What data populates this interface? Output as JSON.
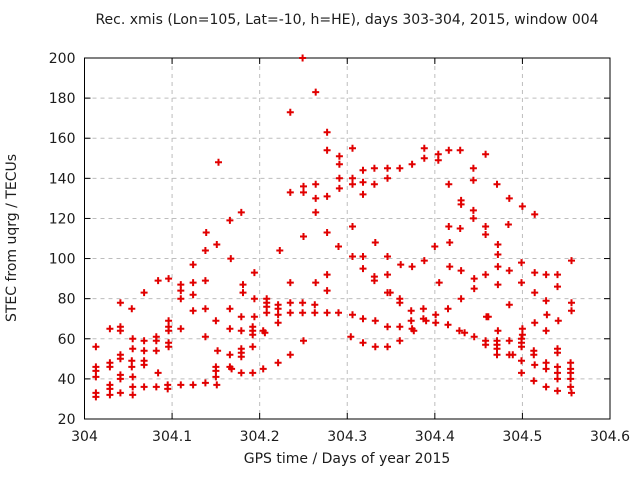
{
  "chart_data": {
    "type": "scatter",
    "title": "Rec. xmis (Lon=105, Lat=-10, h=HE), days 303-304, 2015, window 004",
    "xlabel": "GPS time / Days of year 2015",
    "ylabel": "STEC from uqrg / TECUs",
    "xlim": [
      304,
      304.6
    ],
    "ylim": [
      20,
      200
    ],
    "xticks": [
      304,
      304.1,
      304.2,
      304.3,
      304.4,
      304.5,
      304.6
    ],
    "xtick_labels": [
      "304",
      "304.1",
      "304.2",
      "304.3",
      "304.4",
      "304.5",
      "304.6"
    ],
    "yticks": [
      20,
      40,
      60,
      80,
      100,
      120,
      140,
      160,
      180,
      200
    ],
    "ytick_labels": [
      "20",
      "40",
      "60",
      "80",
      "100",
      "120",
      "140",
      "160",
      "180",
      "200"
    ],
    "grid": true,
    "legend": "none",
    "marker": {
      "shape": "plus",
      "color": "#e10000",
      "size": 7
    },
    "series": [
      {
        "name": "STEC",
        "points": [
          [
            304.139,
            113
          ],
          [
            304.153,
            148
          ],
          [
            304.166,
            119
          ],
          [
            304.179,
            123
          ],
          [
            304.249,
            200
          ],
          [
            304.264,
            183
          ],
          [
            304.235,
            173
          ],
          [
            304.277,
            163
          ],
          [
            304.277,
            154
          ],
          [
            304.291,
            151
          ],
          [
            304.291,
            147
          ],
          [
            304.306,
            155
          ],
          [
            304.388,
            155
          ],
          [
            304.388,
            150
          ],
          [
            304.318,
            144
          ],
          [
            304.331,
            145
          ],
          [
            304.346,
            145
          ],
          [
            304.36,
            145
          ],
          [
            304.374,
            147
          ],
          [
            304.346,
            140
          ],
          [
            304.306,
            140
          ],
          [
            304.291,
            140
          ],
          [
            304.291,
            135
          ],
          [
            304.264,
            137
          ],
          [
            304.25,
            136
          ],
          [
            304.235,
            133
          ],
          [
            304.25,
            133
          ],
          [
            304.306,
            137
          ],
          [
            304.318,
            138
          ],
          [
            304.331,
            137
          ],
          [
            304.318,
            132
          ],
          [
            304.264,
            130
          ],
          [
            304.277,
            131
          ],
          [
            304.264,
            123
          ],
          [
            304.306,
            116
          ],
          [
            304.277,
            113
          ],
          [
            304.25,
            111
          ],
          [
            304.332,
            108
          ],
          [
            304.416,
            154
          ],
          [
            304.429,
            154
          ],
          [
            304.404,
            152
          ],
          [
            304.404,
            149
          ],
          [
            304.458,
            152
          ],
          [
            304.444,
            145
          ],
          [
            304.444,
            139
          ],
          [
            304.416,
            137
          ],
          [
            304.471,
            137
          ],
          [
            304.485,
            130
          ],
          [
            304.43,
            129
          ],
          [
            304.43,
            127
          ],
          [
            304.5,
            126
          ],
          [
            304.444,
            124
          ],
          [
            304.514,
            122
          ],
          [
            304.444,
            120
          ],
          [
            304.484,
            117
          ],
          [
            304.416,
            116
          ],
          [
            304.429,
            115
          ],
          [
            304.458,
            116
          ],
          [
            304.458,
            112
          ],
          [
            304.417,
            108
          ],
          [
            304.138,
            104
          ],
          [
            304.124,
            97
          ],
          [
            304.084,
            89
          ],
          [
            304.096,
            90
          ],
          [
            304.11,
            87
          ],
          [
            304.124,
            88
          ],
          [
            304.138,
            89
          ],
          [
            304.068,
            83
          ],
          [
            304.11,
            84
          ],
          [
            304.124,
            82
          ],
          [
            304.041,
            78
          ],
          [
            304.11,
            80
          ],
          [
            304.054,
            75
          ],
          [
            304.124,
            74
          ],
          [
            304.138,
            75
          ],
          [
            304.096,
            69
          ],
          [
            304.096,
            66
          ],
          [
            304.029,
            65
          ],
          [
            304.041,
            66
          ],
          [
            304.041,
            64
          ],
          [
            304.096,
            64
          ],
          [
            304.11,
            65
          ],
          [
            304.138,
            61
          ],
          [
            304.013,
            56
          ],
          [
            304.055,
            60
          ],
          [
            304.068,
            59
          ],
          [
            304.082,
            61
          ],
          [
            304.082,
            59
          ],
          [
            304.096,
            58
          ],
          [
            304.096,
            56
          ],
          [
            304.055,
            55
          ],
          [
            304.068,
            54
          ],
          [
            304.082,
            54
          ],
          [
            304.041,
            52
          ],
          [
            304.041,
            50
          ],
          [
            304.029,
            48
          ],
          [
            304.029,
            46
          ],
          [
            304.013,
            46
          ],
          [
            304.013,
            44
          ],
          [
            304.054,
            49
          ],
          [
            304.054,
            46
          ],
          [
            304.068,
            49
          ],
          [
            304.068,
            47
          ],
          [
            304.084,
            43
          ],
          [
            304.041,
            42
          ],
          [
            304.041,
            40
          ],
          [
            304.055,
            41
          ],
          [
            304.013,
            41
          ],
          [
            304.029,
            37
          ],
          [
            304.029,
            35
          ],
          [
            304.055,
            36
          ],
          [
            304.068,
            36
          ],
          [
            304.082,
            36
          ],
          [
            304.095,
            37
          ],
          [
            304.095,
            35
          ],
          [
            304.11,
            37
          ],
          [
            304.124,
            37
          ],
          [
            304.138,
            38
          ],
          [
            304.013,
            33
          ],
          [
            304.013,
            31
          ],
          [
            304.041,
            33
          ],
          [
            304.029,
            32
          ],
          [
            304.055,
            32
          ],
          [
            304.223,
            104
          ],
          [
            304.29,
            106
          ],
          [
            304.151,
            107
          ],
          [
            304.167,
            100
          ],
          [
            304.194,
            93
          ],
          [
            304.181,
            87
          ],
          [
            304.181,
            83
          ],
          [
            304.235,
            88
          ],
          [
            304.264,
            88
          ],
          [
            304.277,
            92
          ],
          [
            304.277,
            84
          ],
          [
            304.194,
            80
          ],
          [
            304.208,
            80
          ],
          [
            304.208,
            78
          ],
          [
            304.208,
            76
          ],
          [
            304.208,
            73
          ],
          [
            304.166,
            75
          ],
          [
            304.221,
            77
          ],
          [
            304.221,
            75
          ],
          [
            304.221,
            72
          ],
          [
            304.235,
            78
          ],
          [
            304.235,
            73
          ],
          [
            304.249,
            78
          ],
          [
            304.249,
            73
          ],
          [
            304.263,
            77
          ],
          [
            304.263,
            73
          ],
          [
            304.277,
            73
          ],
          [
            304.29,
            73
          ],
          [
            304.15,
            69
          ],
          [
            304.179,
            71
          ],
          [
            304.194,
            71
          ],
          [
            304.221,
            68
          ],
          [
            304.166,
            65
          ],
          [
            304.179,
            64
          ],
          [
            304.192,
            66
          ],
          [
            304.192,
            64
          ],
          [
            304.192,
            62
          ],
          [
            304.204,
            64
          ],
          [
            304.206,
            63
          ],
          [
            304.25,
            59
          ],
          [
            304.192,
            56
          ],
          [
            304.179,
            55
          ],
          [
            304.179,
            53
          ],
          [
            304.166,
            52
          ],
          [
            304.179,
            51
          ],
          [
            304.235,
            52
          ],
          [
            304.152,
            54
          ],
          [
            304.221,
            48
          ],
          [
            304.166,
            46
          ],
          [
            304.168,
            45
          ],
          [
            304.15,
            46
          ],
          [
            304.15,
            44
          ],
          [
            304.204,
            45
          ],
          [
            304.179,
            43
          ],
          [
            304.192,
            43
          ],
          [
            304.15,
            41
          ],
          [
            304.151,
            37
          ],
          [
            304.4,
            106
          ],
          [
            304.306,
            101
          ],
          [
            304.318,
            101
          ],
          [
            304.346,
            101
          ],
          [
            304.318,
            95
          ],
          [
            304.361,
            97
          ],
          [
            304.374,
            96
          ],
          [
            304.388,
            99
          ],
          [
            304.417,
            96
          ],
          [
            304.43,
            94
          ],
          [
            304.331,
            91
          ],
          [
            304.331,
            89
          ],
          [
            304.346,
            92
          ],
          [
            304.405,
            88
          ],
          [
            304.445,
            90
          ],
          [
            304.445,
            85
          ],
          [
            304.346,
            83
          ],
          [
            304.349,
            83
          ],
          [
            304.36,
            80
          ],
          [
            304.36,
            78
          ],
          [
            304.43,
            80
          ],
          [
            304.415,
            75
          ],
          [
            304.306,
            72
          ],
          [
            304.373,
            74
          ],
          [
            304.387,
            75
          ],
          [
            304.373,
            69
          ],
          [
            304.387,
            70
          ],
          [
            304.39,
            69
          ],
          [
            304.401,
            72
          ],
          [
            304.401,
            68
          ],
          [
            304.318,
            70
          ],
          [
            304.332,
            69
          ],
          [
            304.346,
            66
          ],
          [
            304.36,
            66
          ],
          [
            304.374,
            65
          ],
          [
            304.376,
            64
          ],
          [
            304.415,
            67
          ],
          [
            304.428,
            64
          ],
          [
            304.434,
            63
          ],
          [
            304.304,
            61
          ],
          [
            304.445,
            61
          ],
          [
            304.318,
            58
          ],
          [
            304.332,
            56
          ],
          [
            304.346,
            56
          ],
          [
            304.36,
            59
          ],
          [
            304.472,
            107
          ],
          [
            304.472,
            102
          ],
          [
            304.556,
            99
          ],
          [
            304.472,
            96
          ],
          [
            304.485,
            94
          ],
          [
            304.499,
            98
          ],
          [
            304.458,
            92
          ],
          [
            304.514,
            93
          ],
          [
            304.527,
            92
          ],
          [
            304.54,
            92
          ],
          [
            304.472,
            87
          ],
          [
            304.499,
            88
          ],
          [
            304.54,
            86
          ],
          [
            304.514,
            83
          ],
          [
            304.485,
            77
          ],
          [
            304.527,
            79
          ],
          [
            304.556,
            78
          ],
          [
            304.556,
            74
          ],
          [
            304.459,
            71
          ],
          [
            304.461,
            71
          ],
          [
            304.528,
            72
          ],
          [
            304.541,
            69
          ],
          [
            304.514,
            68
          ],
          [
            304.472,
            64
          ],
          [
            304.5,
            65
          ],
          [
            304.5,
            62
          ],
          [
            304.527,
            64
          ],
          [
            304.458,
            59
          ],
          [
            304.458,
            57
          ],
          [
            304.471,
            59
          ],
          [
            304.471,
            57
          ],
          [
            304.471,
            55
          ],
          [
            304.485,
            59
          ],
          [
            304.499,
            60
          ],
          [
            304.499,
            58
          ],
          [
            304.499,
            56
          ],
          [
            304.471,
            52
          ],
          [
            304.485,
            52
          ],
          [
            304.489,
            52
          ],
          [
            304.513,
            54
          ],
          [
            304.513,
            52
          ],
          [
            304.54,
            55
          ],
          [
            304.54,
            53
          ],
          [
            304.499,
            49
          ],
          [
            304.514,
            47
          ],
          [
            304.527,
            48
          ],
          [
            304.527,
            45
          ],
          [
            304.54,
            46
          ],
          [
            304.555,
            48
          ],
          [
            304.555,
            45
          ],
          [
            304.499,
            43
          ],
          [
            304.513,
            39
          ],
          [
            304.54,
            43
          ],
          [
            304.54,
            40
          ],
          [
            304.555,
            43
          ],
          [
            304.555,
            40
          ],
          [
            304.527,
            36
          ],
          [
            304.54,
            34
          ],
          [
            304.555,
            36
          ],
          [
            304.556,
            33
          ]
        ]
      }
    ]
  }
}
